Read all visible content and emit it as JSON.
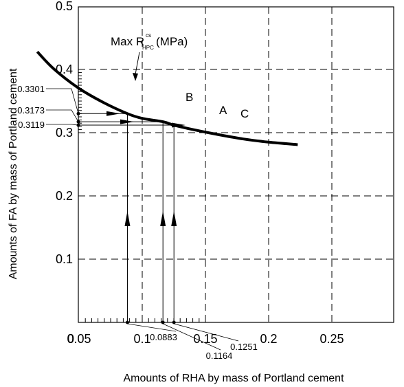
{
  "chart_data": {
    "type": "line",
    "xlabel": "Amounts of  RHA by mass of Portland cement",
    "ylabel": "Amounts of  FA by mass of Portland cement",
    "xlim": [
      0,
      0.25
    ],
    "ylim": [
      0,
      0.5
    ],
    "x_ticks": [
      {
        "value": 0,
        "label": "0"
      },
      {
        "value": 0.05,
        "label": "0.05"
      },
      {
        "value": 0.1,
        "label": "0.1"
      },
      {
        "value": 0.15,
        "label": "0.15"
      },
      {
        "value": 0.2,
        "label": "0.2"
      },
      {
        "value": 0.25,
        "label": "0.25"
      }
    ],
    "y_ticks": [
      {
        "value": 0.1,
        "label": "0.1"
      },
      {
        "value": 0.2,
        "label": "0.2"
      },
      {
        "value": 0.3,
        "label": "0.3"
      },
      {
        "value": 0.4,
        "label": "0.4"
      },
      {
        "value": 0.5,
        "label": "0.5"
      }
    ],
    "grid": true,
    "grid_style": "dashed",
    "curve_label": {
      "main": "Max R",
      "sup": "cs",
      "sub": "HPC",
      "unit": "(MPa)"
    },
    "series": [
      {
        "x": [
          0.017,
          0.03,
          0.05,
          0.07,
          0.0883,
          0.1,
          0.1164,
          0.1251,
          0.14,
          0.16,
          0.18,
          0.2,
          0.223
        ],
        "y": [
          0.428,
          0.401,
          0.37,
          0.347,
          0.3301,
          0.3226,
          0.3173,
          0.3119,
          0.305,
          0.297,
          0.29,
          0.285,
          0.281
        ]
      }
    ],
    "points": [
      {
        "label": "B",
        "x": 0.0883,
        "y": 0.3301,
        "x_label": "0.0883",
        "y_label": "0.3301"
      },
      {
        "label": "A",
        "x": 0.1164,
        "y": 0.3173,
        "x_label": "0.1164",
        "y_label": "0.3173"
      },
      {
        "label": "C",
        "x": 0.1251,
        "y": 0.3119,
        "x_label": "0.1251",
        "y_label": "0.3119"
      }
    ],
    "colors": {
      "line": "#000000",
      "grid": "#000000",
      "background": "#ffffff"
    }
  }
}
